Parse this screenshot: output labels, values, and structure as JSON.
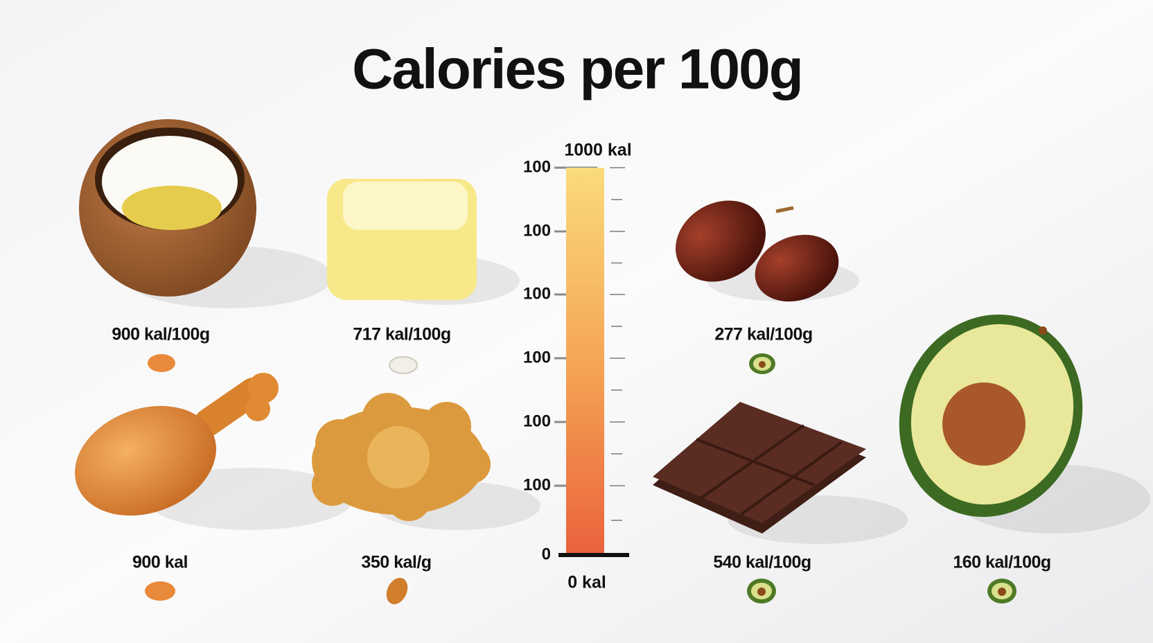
{
  "title": "Calories per 100g",
  "scale": {
    "top_label": "1000 kal",
    "bottom_label": "0 kal",
    "tick_labels": [
      "100",
      "100",
      "100",
      "100",
      "100",
      "100",
      "0"
    ]
  },
  "foods": [
    {
      "label": "900 kal/100g"
    },
    {
      "label": "717 kal/100g"
    },
    {
      "label": "277 kal/100g"
    },
    {
      "label": "900 kal"
    },
    {
      "label": "350 kal/g"
    },
    {
      "label": "540 kal/100g"
    },
    {
      "label": "160 kal/100g"
    }
  ]
}
